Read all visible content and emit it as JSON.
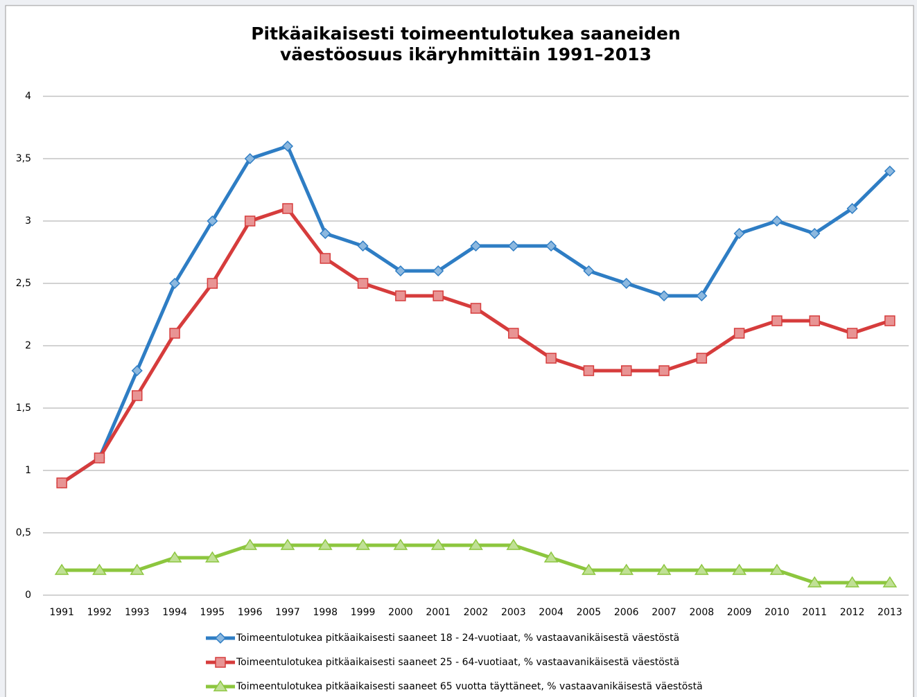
{
  "chart_data": {
    "type": "line",
    "title": [
      "Pitkäaikaisesti toimeentulotukea saaneiden",
      "väestöosuus ikäryhmittäin 1991–2013"
    ],
    "categories": [
      "1991",
      "1992",
      "1993",
      "1994",
      "1995",
      "1996",
      "1997",
      "1998",
      "1999",
      "2000",
      "2001",
      "2002",
      "2003",
      "2004",
      "2005",
      "2006",
      "2007",
      "2008",
      "2009",
      "2010",
      "2011",
      "2012",
      "2013"
    ],
    "series": [
      {
        "name": "Toimeentulotukea pitkäaikaisesti saaneet 18 - 24-vuotiaat, % vastaavanikäisestä väestöstä",
        "color": "#2e7dc4",
        "marker": "diamond",
        "values": [
          0.9,
          1.1,
          1.8,
          2.5,
          3.0,
          3.5,
          3.6,
          2.9,
          2.8,
          2.6,
          2.6,
          2.8,
          2.8,
          2.8,
          2.6,
          2.5,
          2.4,
          2.4,
          2.9,
          3.0,
          2.9,
          3.1,
          3.4
        ]
      },
      {
        "name": "Toimeentulotukea pitkäaikaisesti saaneet 25 - 64-vuotiaat, % vastaavanikäisestä väestöstä",
        "color": "#d63c3c",
        "marker": "square",
        "values": [
          0.9,
          1.1,
          1.6,
          2.1,
          2.5,
          3.0,
          3.1,
          2.7,
          2.5,
          2.4,
          2.4,
          2.3,
          2.1,
          1.9,
          1.8,
          1.8,
          1.8,
          1.9,
          2.1,
          2.2,
          2.2,
          2.1,
          2.2
        ]
      },
      {
        "name": "Toimeentulotukea pitkäaikaisesti saaneet 65 vuotta täyttäneet, % vastaavanikäisestä väestöstä",
        "color": "#8cc63e",
        "marker": "triangle",
        "values": [
          0.2,
          0.2,
          0.2,
          0.3,
          0.3,
          0.4,
          0.4,
          0.4,
          0.4,
          0.4,
          0.4,
          0.4,
          0.4,
          0.3,
          0.2,
          0.2,
          0.2,
          0.2,
          0.2,
          0.2,
          0.1,
          0.1,
          0.1
        ]
      }
    ],
    "ylim": [
      0,
      4
    ],
    "yticks": [
      0,
      {
        "value": 0.5,
        "label": "0,5"
      },
      1,
      {
        "value": 1.5,
        "label": "1,5"
      },
      2,
      {
        "value": 2.5,
        "label": "2,5"
      },
      3,
      {
        "value": 3.5,
        "label": "3,5"
      },
      4
    ],
    "grid": true,
    "legend": "bottom"
  }
}
